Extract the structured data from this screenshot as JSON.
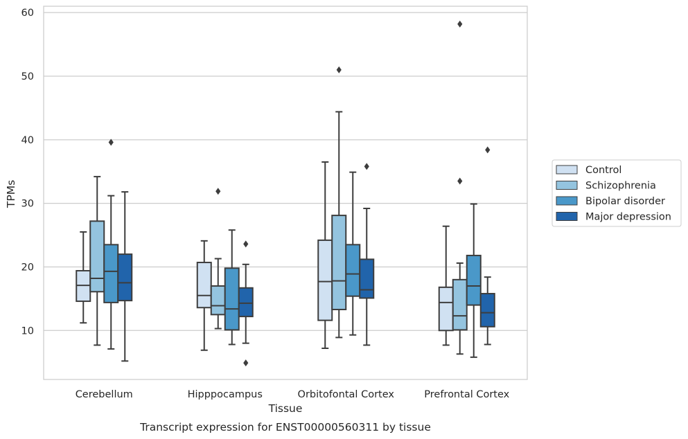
{
  "chart_data": {
    "type": "box",
    "xlabel": "Tissue",
    "ylabel": "TPMs",
    "caption": "Transcript expression for ENST00000560311 by tissue",
    "ylim": [
      2.3,
      61
    ],
    "yticks": [
      10,
      20,
      30,
      40,
      50,
      60
    ],
    "grid": "horizontal",
    "legend_position": "right",
    "categories": [
      "Cerebellum",
      "Hipppocampus",
      "Orbitofontal Cortex",
      "Prefrontal Cortex"
    ],
    "series": [
      {
        "name": "Control",
        "color": "#d0e1f2",
        "boxes": [
          {
            "whislo": 11.2,
            "q1": 14.6,
            "med": 17.1,
            "q3": 19.4,
            "whishi": 25.5,
            "fliers": []
          },
          {
            "whislo": 6.9,
            "q1": 13.6,
            "med": 15.5,
            "q3": 20.7,
            "whishi": 24.1,
            "fliers": []
          },
          {
            "whislo": 7.2,
            "q1": 11.6,
            "med": 17.7,
            "q3": 24.2,
            "whishi": 36.5,
            "fliers": []
          },
          {
            "whislo": 7.7,
            "q1": 10.0,
            "med": 14.4,
            "q3": 16.8,
            "whishi": 26.4,
            "fliers": []
          }
        ]
      },
      {
        "name": "Schizophrenia",
        "color": "#94c4df",
        "boxes": [
          {
            "whislo": 7.7,
            "q1": 16.1,
            "med": 18.2,
            "q3": 27.2,
            "whishi": 34.2,
            "fliers": []
          },
          {
            "whislo": 10.3,
            "q1": 12.5,
            "med": 13.9,
            "q3": 17.0,
            "whishi": 21.3,
            "fliers": [
              31.9
            ]
          },
          {
            "whislo": 8.9,
            "q1": 13.3,
            "med": 17.8,
            "q3": 28.1,
            "whishi": 44.4,
            "fliers": [
              51.0
            ]
          },
          {
            "whislo": 6.3,
            "q1": 10.1,
            "med": 12.3,
            "q3": 18.0,
            "whishi": 20.6,
            "fliers": [
              33.5,
              58.2
            ]
          }
        ]
      },
      {
        "name": "Bipolar disorder",
        "color": "#4a98c9",
        "boxes": [
          {
            "whislo": 7.1,
            "q1": 14.4,
            "med": 19.3,
            "q3": 23.5,
            "whishi": 31.2,
            "fliers": [
              39.6
            ]
          },
          {
            "whislo": 7.8,
            "q1": 10.1,
            "med": 13.4,
            "q3": 19.8,
            "whishi": 25.8,
            "fliers": []
          },
          {
            "whislo": 9.3,
            "q1": 15.4,
            "med": 18.9,
            "q3": 23.5,
            "whishi": 34.9,
            "fliers": []
          },
          {
            "whislo": 5.8,
            "q1": 14.0,
            "med": 17.0,
            "q3": 21.8,
            "whishi": 29.9,
            "fliers": []
          }
        ]
      },
      {
        "name": "Major depression",
        "color": "#2164ab",
        "boxes": [
          {
            "whislo": 5.2,
            "q1": 14.7,
            "med": 17.5,
            "q3": 22.0,
            "whishi": 31.8,
            "fliers": []
          },
          {
            "whislo": 8.0,
            "q1": 12.2,
            "med": 14.3,
            "q3": 16.7,
            "whishi": 20.4,
            "fliers": [
              4.9,
              23.6
            ]
          },
          {
            "whislo": 7.7,
            "q1": 15.1,
            "med": 16.4,
            "q3": 21.2,
            "whishi": 29.2,
            "fliers": [
              35.8
            ]
          },
          {
            "whislo": 7.8,
            "q1": 10.6,
            "med": 12.8,
            "q3": 15.8,
            "whishi": 18.4,
            "fliers": [
              38.4
            ]
          }
        ]
      }
    ]
  }
}
